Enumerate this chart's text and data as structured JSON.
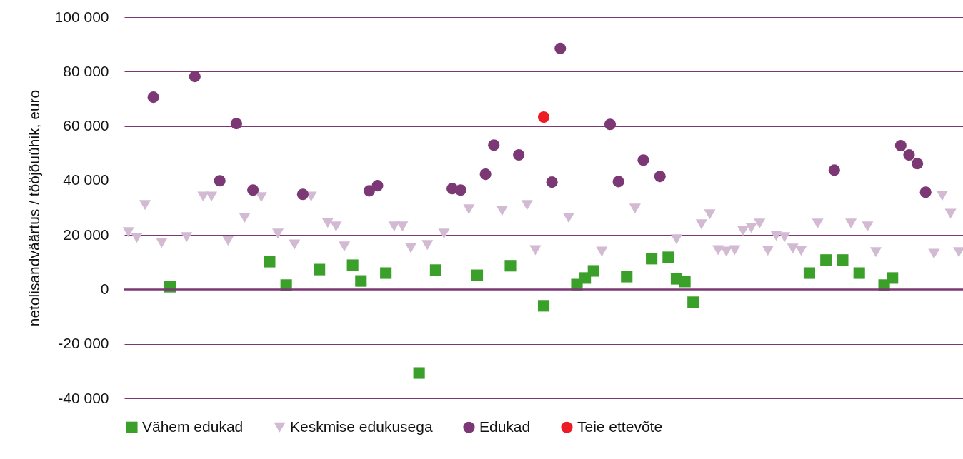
{
  "chart_data": {
    "type": "scatter",
    "ylabel": "netolisandväärtus / tööjõuühik, euro",
    "categories": [
      null,
      null,
      null,
      null,
      null,
      null,
      null,
      null,
      null,
      null,
      null,
      null,
      null,
      null,
      null,
      null,
      null,
      null,
      null,
      null,
      null,
      null,
      null,
      null,
      null,
      null,
      null,
      null,
      null,
      null,
      null,
      null,
      null,
      null,
      null,
      null,
      null,
      null,
      null,
      null,
      null,
      null,
      null,
      null,
      null,
      null,
      null,
      null,
      null,
      null,
      null,
      null,
      null,
      null,
      null,
      null,
      null,
      null,
      null,
      null,
      null,
      null,
      null,
      null,
      null,
      null,
      null,
      null,
      null,
      null,
      null,
      null,
      null,
      null,
      null,
      null,
      null,
      null,
      null,
      null,
      null,
      null,
      null,
      null,
      null,
      null,
      null,
      null,
      null,
      null,
      null,
      null,
      null,
      null,
      null,
      null,
      null,
      null,
      null,
      null,
      null
    ],
    "ylim": [
      -40000,
      100000
    ],
    "yticks": [
      {
        "value": -40000,
        "label": "-40 000"
      },
      {
        "value": -20000,
        "label": "-20 000"
      },
      0,
      {
        "value": 20000,
        "label": "20 000"
      },
      {
        "value": 40000,
        "label": "40 000"
      },
      {
        "value": 60000,
        "label": "60 000"
      },
      {
        "value": 80000,
        "label": "80 000"
      },
      {
        "value": 100000,
        "label": "100 000"
      }
    ],
    "grid": "y",
    "legend": "bottom",
    "tick_labels": "y",
    "ref_lines": [
      {
        "axis": "y",
        "value": 0,
        "color": "#7b3874"
      }
    ],
    "series": [
      {
        "name": "Vähem edukad",
        "color": "#3aa02a",
        "marker": "square",
        "values": [
          null,
          null,
          null,
          null,
          null,
          1000,
          null,
          null,
          null,
          null,
          null,
          null,
          null,
          null,
          null,
          null,
          null,
          10200,
          null,
          1600,
          null,
          null,
          null,
          7300,
          null,
          null,
          null,
          8900,
          3100,
          null,
          null,
          6000,
          null,
          null,
          null,
          -30700,
          null,
          7100,
          null,
          null,
          null,
          null,
          5200,
          null,
          null,
          null,
          8700,
          null,
          null,
          null,
          -6000,
          null,
          null,
          null,
          1800,
          4200,
          6800,
          null,
          null,
          null,
          4700,
          null,
          null,
          11300,
          null,
          11800,
          3900,
          2900,
          -4700,
          null,
          null,
          null,
          null,
          null,
          null,
          null,
          null,
          null,
          null,
          null,
          null,
          null,
          6000,
          null,
          10800,
          null,
          10800,
          null,
          6000,
          null,
          null,
          1600,
          4200,
          null,
          null,
          null,
          null,
          null,
          null,
          null,
          null
        ]
      },
      {
        "name": "Keskmise edukusega",
        "color": "#d3bad3",
        "marker": "triangle",
        "values": [
          21000,
          18900,
          31000,
          null,
          17100,
          null,
          null,
          19200,
          null,
          34100,
          34100,
          null,
          17900,
          null,
          26300,
          null,
          33900,
          null,
          20500,
          null,
          16500,
          null,
          34100,
          null,
          24400,
          23100,
          15800,
          null,
          null,
          null,
          null,
          null,
          23100,
          23100,
          15200,
          null,
          16300,
          null,
          20500,
          null,
          null,
          29400,
          null,
          null,
          null,
          28900,
          null,
          null,
          31000,
          14400,
          null,
          null,
          null,
          26300,
          null,
          null,
          null,
          13900,
          null,
          null,
          null,
          29700,
          null,
          null,
          null,
          null,
          18400,
          null,
          null,
          23900,
          27600,
          14400,
          13900,
          14400,
          21500,
          22600,
          24200,
          14200,
          19700,
          19200,
          15000,
          14200,
          null,
          24200,
          null,
          null,
          null,
          24200,
          null,
          23100,
          13700,
          null,
          null,
          null,
          null,
          null,
          null,
          13100,
          34400,
          27800,
          13700
        ]
      },
      {
        "name": "Edukad",
        "color": "#7b3874",
        "marker": "circle",
        "values": [
          null,
          null,
          null,
          70600,
          null,
          null,
          null,
          null,
          78200,
          null,
          null,
          39900,
          null,
          60900,
          null,
          36500,
          null,
          null,
          null,
          null,
          null,
          34900,
          null,
          null,
          null,
          null,
          null,
          null,
          null,
          36200,
          38100,
          null,
          null,
          null,
          null,
          null,
          null,
          null,
          null,
          37000,
          36500,
          null,
          null,
          42300,
          53000,
          null,
          null,
          49400,
          null,
          null,
          null,
          39400,
          88500,
          null,
          null,
          null,
          null,
          null,
          60600,
          39600,
          null,
          null,
          47500,
          null,
          41500,
          null,
          null,
          null,
          null,
          null,
          null,
          null,
          null,
          null,
          null,
          null,
          null,
          null,
          null,
          null,
          null,
          null,
          null,
          null,
          null,
          43800,
          null,
          null,
          null,
          null,
          null,
          null,
          null,
          52800,
          49400,
          46200,
          35700,
          null,
          null,
          null,
          null
        ]
      },
      {
        "name": "Teie ettevõte",
        "color": "#ed1c24",
        "marker": "circle",
        "values": [
          null,
          null,
          null,
          null,
          null,
          null,
          null,
          null,
          null,
          null,
          null,
          null,
          null,
          null,
          null,
          null,
          null,
          null,
          null,
          null,
          null,
          null,
          null,
          null,
          null,
          null,
          null,
          null,
          null,
          null,
          null,
          null,
          null,
          null,
          null,
          null,
          null,
          null,
          null,
          null,
          null,
          null,
          null,
          null,
          null,
          null,
          null,
          null,
          null,
          null,
          63300,
          null,
          null,
          null,
          null,
          null,
          null,
          null,
          null,
          null,
          null,
          null,
          null,
          null,
          null,
          null,
          null,
          null,
          null,
          null,
          null,
          null,
          null,
          null,
          null,
          null,
          null,
          null,
          null,
          null,
          null,
          null,
          null,
          null,
          null,
          null,
          null,
          null,
          null,
          null,
          null,
          null,
          null,
          null,
          null,
          null,
          null,
          null,
          null,
          null,
          null
        ]
      }
    ]
  }
}
